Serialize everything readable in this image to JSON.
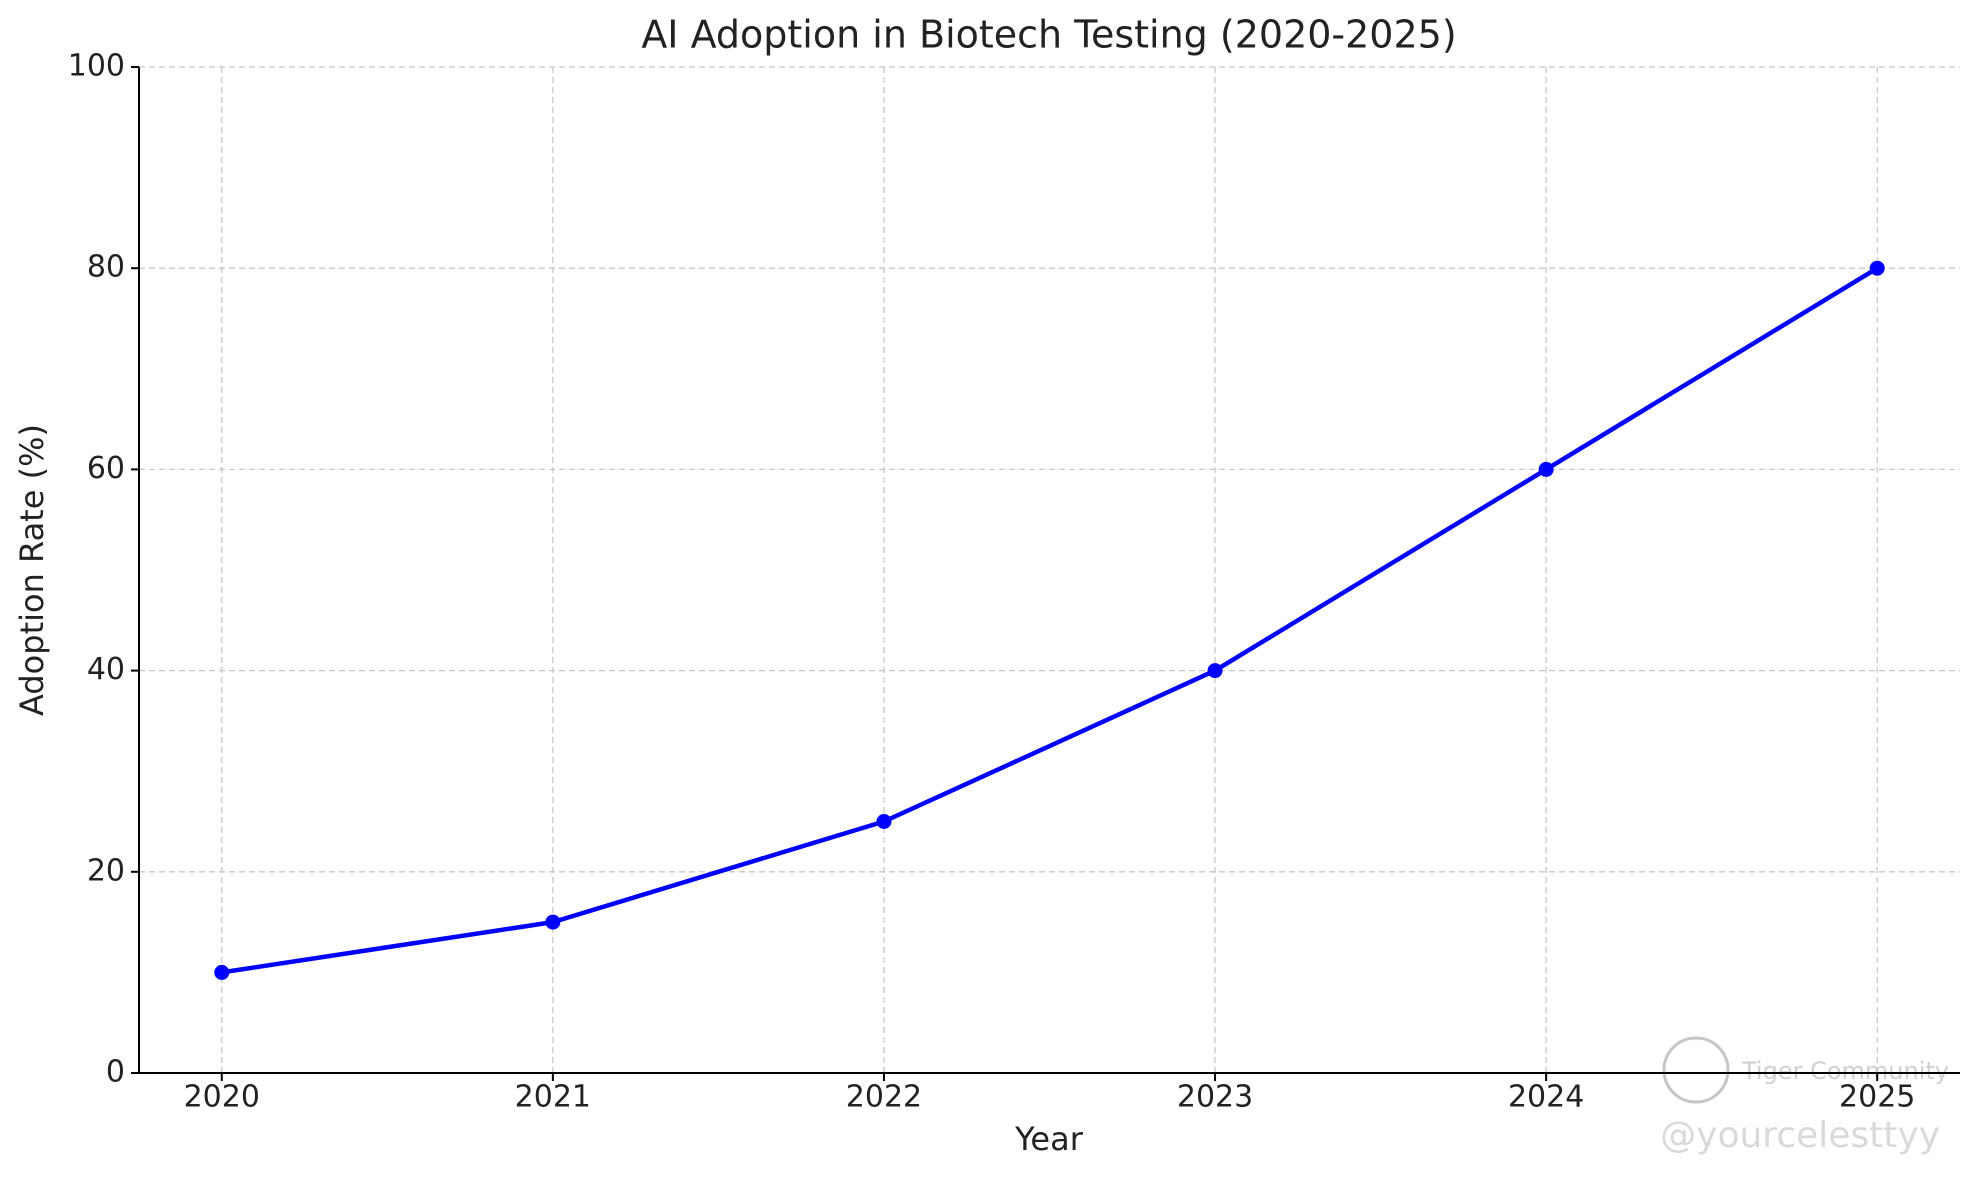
{
  "chart_data": {
    "type": "line",
    "title": "AI Adoption in Biotech Testing (2020-2025)",
    "x_label": "Year",
    "y_label": "Adoption Rate (%)",
    "x": [
      2020,
      2021,
      2022,
      2023,
      2024,
      2025
    ],
    "series": [
      {
        "name": "AI Adoption",
        "color": "#0000ff",
        "values": [
          10,
          15,
          25,
          40,
          60,
          80
        ]
      }
    ],
    "xlim": [
      2019.75,
      2025.25
    ],
    "xticks": [
      2020,
      2021,
      2022,
      2023,
      2024,
      2025
    ],
    "ylim": [
      0,
      100
    ],
    "yticks": [
      0,
      20,
      40,
      60,
      80,
      100
    ],
    "grid": true,
    "markers": true
  },
  "watermark": {
    "brand": "Tiger Community",
    "handle": "@yourcelesttyy"
  }
}
